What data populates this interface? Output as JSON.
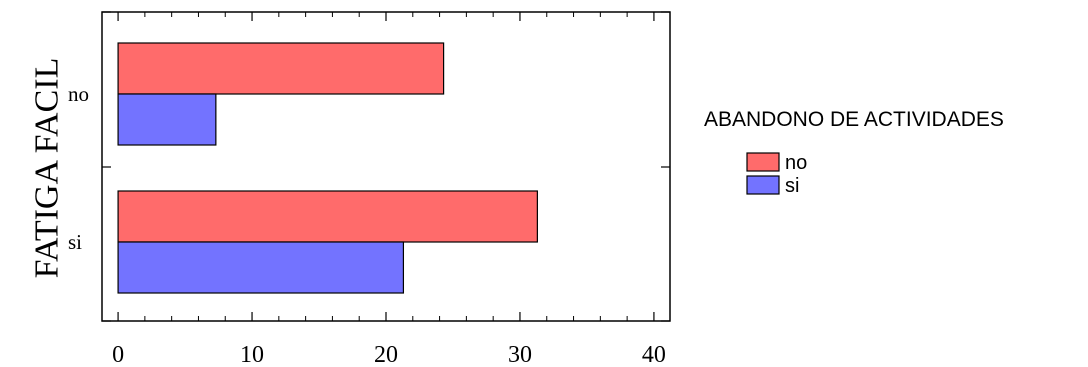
{
  "chart_data": {
    "type": "bar",
    "orientation": "horizontal",
    "title": "",
    "ylabel": "FATIGA FACIL",
    "xlabel": "",
    "categories": [
      "no",
      "si"
    ],
    "series": [
      {
        "name": "no",
        "values": [
          24.3,
          31.3
        ],
        "color": "#ff6b6b"
      },
      {
        "name": "si",
        "values": [
          7.3,
          21.3
        ],
        "color": "#7373ff"
      }
    ],
    "xlim": [
      -1.2,
      41.2
    ],
    "xticks": [
      0,
      10,
      20,
      30,
      40
    ],
    "xtick_labels": [
      "0",
      "10",
      "20",
      "30",
      "40"
    ],
    "grid": false,
    "legend": {
      "title": "ABANDONO DE ACTIVIDADES",
      "placement": "right",
      "entries": [
        "no",
        "si"
      ]
    }
  }
}
